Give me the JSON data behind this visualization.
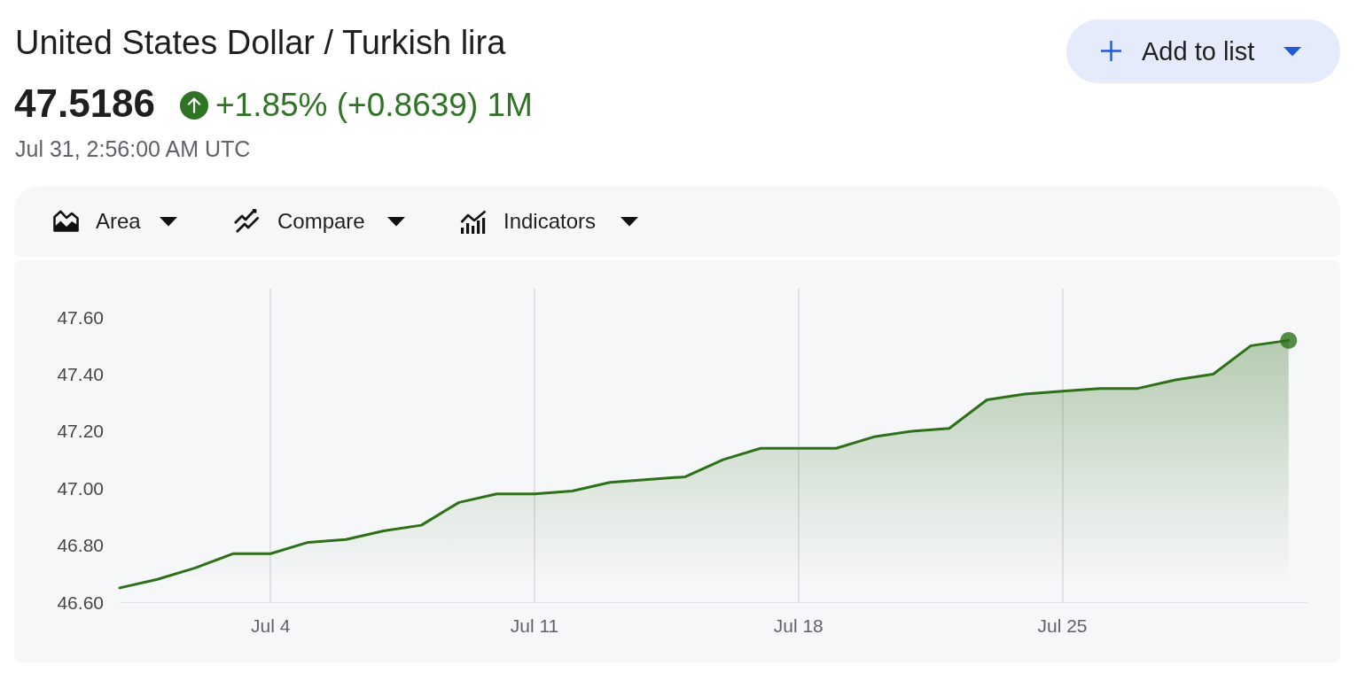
{
  "chart_data": {
    "type": "area",
    "title": "United States Dollar / Turkish lira",
    "annotations": [
      "47.5186",
      "+1.85% (+0.8639) 1M",
      "Jul 31, 2:56:00 AM UTC",
      "Add to list",
      "Area",
      "Compare",
      "Indicators"
    ],
    "x": [
      "--06-30",
      "--07-01",
      "--07-02",
      "--07-03",
      "--07-04",
      "--07-05",
      "--07-06",
      "--07-07",
      "--07-08",
      "--07-09",
      "--07-10",
      "--07-11",
      "--07-12",
      "--07-13",
      "--07-14",
      "--07-15",
      "--07-16",
      "--07-17",
      "--07-18",
      "--07-19",
      "--07-20",
      "--07-21",
      "--07-22",
      "--07-23",
      "--07-24",
      "--07-25",
      "--07-26",
      "--07-27",
      "--07-28",
      "--07-29",
      "--07-30",
      "--07-31"
    ],
    "series": [
      {
        "color": "#2d7019",
        "values": [
          46.65,
          46.68,
          46.72,
          46.77,
          46.77,
          46.81,
          46.82,
          46.85,
          46.87,
          46.95,
          46.98,
          46.98,
          46.99,
          47.02,
          47.03,
          47.04,
          47.1,
          47.14,
          47.14,
          47.14,
          47.18,
          47.2,
          47.21,
          47.31,
          47.33,
          47.34,
          47.35,
          47.35,
          47.38,
          47.4,
          47.5,
          47.5186
        ]
      },
      {
        "type": "scatter",
        "x": [
          "--07-31"
        ],
        "values": [
          47.5186
        ],
        "color": "#2d7019",
        "marker": "circle"
      }
    ],
    "xlim": [
      "--06-30",
      "--07-31T12:00"
    ],
    "xticks": [
      {
        "value": "--07-04",
        "label": "Jul 4"
      },
      {
        "value": "--07-11",
        "label": "Jul 11"
      },
      {
        "value": "--07-18",
        "label": "Jul 18"
      },
      {
        "value": "--07-25",
        "label": "Jul 25"
      }
    ],
    "ylim": [
      46.6,
      47.7
    ],
    "yticks": [
      {
        "value": 46.6,
        "label": "46.60"
      },
      {
        "value": 46.8,
        "label": "46.80"
      },
      {
        "value": 47.0,
        "label": "47.00"
      },
      {
        "value": 47.2,
        "label": "47.20"
      },
      {
        "value": 47.4,
        "label": "47.40"
      },
      {
        "value": 47.6,
        "label": "47.60"
      }
    ],
    "grid": "x"
  }
}
